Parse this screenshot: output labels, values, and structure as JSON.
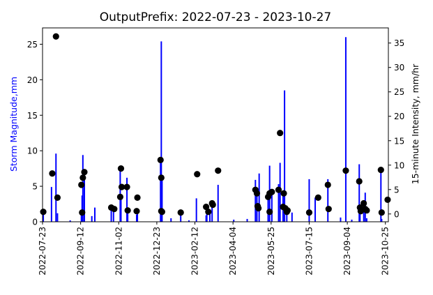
{
  "chart_data": {
    "type": "bar+scatter",
    "title": "OutputPrefix: 2022-07-23 - 2023-10-27",
    "ylabel_left": "Storm Magnitude,mm",
    "ylabel_right": "15-minute Intensity,  mm/hr",
    "x_tick_labels": [
      "2022-07-23",
      "2022-09-12",
      "2022-11-02",
      "2022-12-23",
      "2023-02-12",
      "2023-04-04",
      "2023-05-25",
      "2023-07-15",
      "2023-09-04",
      "2023-10-25"
    ],
    "y_left_ticks": [
      "0",
      "5",
      "10",
      "15",
      "20",
      "25"
    ],
    "y_right_ticks": [
      "0",
      "5",
      "10",
      "15",
      "20",
      "25",
      "30",
      "35"
    ],
    "y_left_range": [
      0,
      27.3
    ],
    "y_right_range": [
      -1.6,
      38.1
    ],
    "x_range_days": [
      0,
      463
    ],
    "colors": {
      "bars": "#0000ff",
      "points": "#000000",
      "left_label": "#0000ff"
    },
    "bars": [
      {
        "day": 1,
        "value": 1.4
      },
      {
        "day": 12,
        "value": 4.9
      },
      {
        "day": 18,
        "value": 9.6
      },
      {
        "day": 20,
        "value": 1.2
      },
      {
        "day": 37,
        "value": 0.2
      },
      {
        "day": 52,
        "value": 1.3
      },
      {
        "day": 53,
        "value": 3.7
      },
      {
        "day": 54,
        "value": 9.4
      },
      {
        "day": 56,
        "value": 7.0
      },
      {
        "day": 66,
        "value": 0.8
      },
      {
        "day": 70,
        "value": 2.0
      },
      {
        "day": 92,
        "value": 2.0
      },
      {
        "day": 95,
        "value": 1.9
      },
      {
        "day": 104,
        "value": 7.5
      },
      {
        "day": 105,
        "value": 3.3
      },
      {
        "day": 113,
        "value": 6.2
      },
      {
        "day": 114,
        "value": 1.5
      },
      {
        "day": 126,
        "value": 1.0
      },
      {
        "day": 127,
        "value": 1.5
      },
      {
        "day": 158,
        "value": 8.7
      },
      {
        "day": 159,
        "value": 25.4
      },
      {
        "day": 160,
        "value": 6.2
      },
      {
        "day": 172,
        "value": 0.5
      },
      {
        "day": 185,
        "value": 1.3
      },
      {
        "day": 196,
        "value": 0.2
      },
      {
        "day": 206,
        "value": 3.3
      },
      {
        "day": 219,
        "value": 0.9
      },
      {
        "day": 220,
        "value": 2.2
      },
      {
        "day": 224,
        "value": 1.5
      },
      {
        "day": 227,
        "value": 2.6
      },
      {
        "day": 235,
        "value": 5.2
      },
      {
        "day": 256,
        "value": 0.3
      },
      {
        "day": 274,
        "value": 0.4
      },
      {
        "day": 285,
        "value": 5.9
      },
      {
        "day": 287,
        "value": 4.0
      },
      {
        "day": 290,
        "value": 6.8
      },
      {
        "day": 302,
        "value": 3.5
      },
      {
        "day": 304,
        "value": 7.9
      },
      {
        "day": 307,
        "value": 4.2
      },
      {
        "day": 316,
        "value": 5.3
      },
      {
        "day": 318,
        "value": 8.3
      },
      {
        "day": 322,
        "value": 4.0
      },
      {
        "day": 324,
        "value": 18.5
      },
      {
        "day": 327,
        "value": 1.6
      },
      {
        "day": 334,
        "value": 1.3
      },
      {
        "day": 357,
        "value": 6.0
      },
      {
        "day": 365,
        "value": 3.4
      },
      {
        "day": 382,
        "value": 6.0
      },
      {
        "day": 399,
        "value": 0.6
      },
      {
        "day": 406,
        "value": 26.0
      },
      {
        "day": 414,
        "value": 0.3
      },
      {
        "day": 424,
        "value": 8.1
      },
      {
        "day": 425,
        "value": 2.0
      },
      {
        "day": 430,
        "value": 1.5
      },
      {
        "day": 432,
        "value": 4.1
      },
      {
        "day": 434,
        "value": 0.5
      },
      {
        "day": 453,
        "value": 7.3
      },
      {
        "day": 454,
        "value": 0.4
      }
    ],
    "points": [
      {
        "day": 1,
        "value": 1.4
      },
      {
        "day": 13,
        "value": 6.8
      },
      {
        "day": 18,
        "value": 26.1
      },
      {
        "day": 20,
        "value": 3.4
      },
      {
        "day": 52,
        "value": 5.2
      },
      {
        "day": 53,
        "value": 1.3
      },
      {
        "day": 54,
        "value": 6.2
      },
      {
        "day": 56,
        "value": 7.0
      },
      {
        "day": 92,
        "value": 2.0
      },
      {
        "day": 96,
        "value": 1.8
      },
      {
        "day": 104,
        "value": 3.5
      },
      {
        "day": 105,
        "value": 7.5
      },
      {
        "day": 106,
        "value": 4.9
      },
      {
        "day": 113,
        "value": 4.9
      },
      {
        "day": 114,
        "value": 1.6
      },
      {
        "day": 126,
        "value": 1.5
      },
      {
        "day": 127,
        "value": 3.4
      },
      {
        "day": 158,
        "value": 8.7
      },
      {
        "day": 159,
        "value": 6.2
      },
      {
        "day": 159,
        "value": 1.5
      },
      {
        "day": 160,
        "value": 1.4
      },
      {
        "day": 185,
        "value": 1.3
      },
      {
        "day": 207,
        "value": 6.7
      },
      {
        "day": 219,
        "value": 2.1
      },
      {
        "day": 222,
        "value": 1.4
      },
      {
        "day": 227,
        "value": 2.6
      },
      {
        "day": 228,
        "value": 2.4
      },
      {
        "day": 235,
        "value": 7.2
      },
      {
        "day": 285,
        "value": 4.5
      },
      {
        "day": 287,
        "value": 4.0
      },
      {
        "day": 288,
        "value": 2.2
      },
      {
        "day": 289,
        "value": 1.9
      },
      {
        "day": 302,
        "value": 3.5
      },
      {
        "day": 304,
        "value": 4.0
      },
      {
        "day": 304,
        "value": 1.4
      },
      {
        "day": 307,
        "value": 4.2
      },
      {
        "day": 316,
        "value": 4.5
      },
      {
        "day": 318,
        "value": 12.5
      },
      {
        "day": 322,
        "value": 2.1
      },
      {
        "day": 323,
        "value": 4.0
      },
      {
        "day": 325,
        "value": 1.9
      },
      {
        "day": 327,
        "value": 1.4
      },
      {
        "day": 328,
        "value": 1.6
      },
      {
        "day": 357,
        "value": 1.3
      },
      {
        "day": 369,
        "value": 3.4
      },
      {
        "day": 382,
        "value": 5.2
      },
      {
        "day": 383,
        "value": 1.8
      },
      {
        "day": 406,
        "value": 7.2
      },
      {
        "day": 424,
        "value": 5.7
      },
      {
        "day": 425,
        "value": 2.0
      },
      {
        "day": 426,
        "value": 1.5
      },
      {
        "day": 430,
        "value": 2.6
      },
      {
        "day": 432,
        "value": 1.8
      },
      {
        "day": 434,
        "value": 1.6
      },
      {
        "day": 453,
        "value": 7.3
      },
      {
        "day": 454,
        "value": 1.3
      },
      {
        "day": 462,
        "value": 3.1
      }
    ]
  }
}
